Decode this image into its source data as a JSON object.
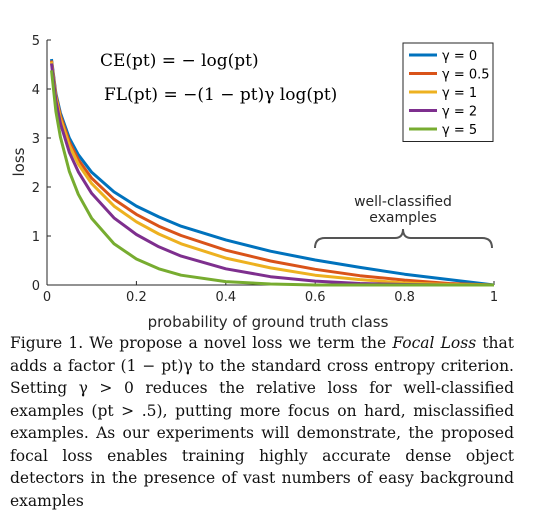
{
  "chart_data": {
    "type": "line",
    "xlabel": "probability of ground truth class",
    "ylabel": "loss",
    "xlim": [
      0,
      1
    ],
    "ylim": [
      0,
      5
    ],
    "xticks": [
      "0",
      "0.2",
      "0.4",
      "0.6",
      "0.8",
      "1"
    ],
    "yticks": [
      "0",
      "1",
      "2",
      "3",
      "4",
      "5"
    ],
    "x": [
      0.01,
      0.02,
      0.03,
      0.05,
      0.07,
      0.1,
      0.15,
      0.2,
      0.25,
      0.3,
      0.4,
      0.5,
      0.6,
      0.7,
      0.8,
      0.9,
      1.0
    ],
    "series": [
      {
        "name": "γ = 0",
        "color": "#0072BD",
        "values": [
          4.61,
          3.91,
          3.51,
          3.0,
          2.66,
          2.3,
          1.9,
          1.61,
          1.39,
          1.2,
          0.92,
          0.69,
          0.51,
          0.36,
          0.22,
          0.11,
          0.0
        ]
      },
      {
        "name": "γ = 0.5",
        "color": "#D95319",
        "values": [
          4.58,
          3.87,
          3.46,
          2.92,
          2.56,
          2.18,
          1.75,
          1.44,
          1.2,
          1.01,
          0.71,
          0.49,
          0.32,
          0.19,
          0.1,
          0.03,
          0.0
        ]
      },
      {
        "name": "γ = 1",
        "color": "#EDB120",
        "values": [
          4.56,
          3.83,
          3.4,
          2.85,
          2.47,
          2.07,
          1.61,
          1.29,
          1.04,
          0.84,
          0.55,
          0.35,
          0.2,
          0.11,
          0.04,
          0.01,
          0.0
        ]
      },
      {
        "name": "γ = 2",
        "color": "#7E2F8E",
        "values": [
          4.52,
          3.76,
          3.3,
          2.71,
          2.31,
          1.87,
          1.37,
          1.03,
          0.78,
          0.59,
          0.33,
          0.17,
          0.08,
          0.03,
          0.01,
          0.0,
          0.0
        ]
      },
      {
        "name": "γ = 5",
        "color": "#77AC30",
        "values": [
          4.38,
          3.54,
          3.02,
          2.32,
          1.85,
          1.36,
          0.84,
          0.53,
          0.33,
          0.2,
          0.07,
          0.02,
          0.0,
          0.0,
          0.0,
          0.0,
          0.0
        ]
      }
    ],
    "legend_position": "top-right",
    "grid": false,
    "equations": [
      "CE(pt) = − log(pt)",
      "FL(pt) = −(1 − pt)γ log(pt)"
    ],
    "annotation": [
      "well-classified",
      "examples"
    ]
  },
  "caption": {
    "label": "Figure 1.",
    "text_a": " We propose a novel loss we term the ",
    "term": "Focal Loss",
    "text_b": " that adds a factor (1 − pt)γ to the standard cross entropy criterion. Setting γ > 0 reduces the relative loss for well-classified examples (pt > .5), putting more focus on hard, misclassified examples. As our experiments will demonstrate, the proposed focal loss enables training highly accurate dense object detectors in the presence of vast numbers of easy background examples"
  }
}
